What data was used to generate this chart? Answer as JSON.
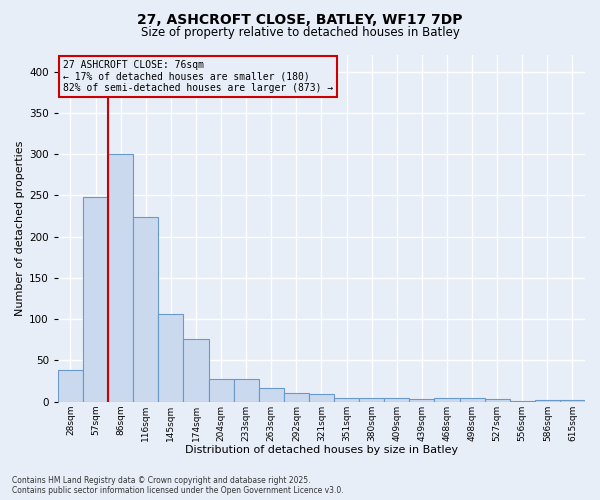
{
  "title_line1": "27, ASHCROFT CLOSE, BATLEY, WF17 7DP",
  "title_line2": "Size of property relative to detached houses in Batley",
  "xlabel": "Distribution of detached houses by size in Batley",
  "ylabel": "Number of detached properties",
  "footer_line1": "Contains HM Land Registry data © Crown copyright and database right 2025.",
  "footer_line2": "Contains public sector information licensed under the Open Government Licence v3.0.",
  "categories": [
    "28sqm",
    "57sqm",
    "86sqm",
    "116sqm",
    "145sqm",
    "174sqm",
    "204sqm",
    "233sqm",
    "263sqm",
    "292sqm",
    "321sqm",
    "351sqm",
    "380sqm",
    "409sqm",
    "439sqm",
    "468sqm",
    "498sqm",
    "527sqm",
    "556sqm",
    "586sqm",
    "615sqm"
  ],
  "values": [
    38,
    248,
    300,
    224,
    106,
    76,
    27,
    27,
    16,
    10,
    9,
    5,
    5,
    4,
    3,
    4,
    4,
    3,
    1,
    2,
    2
  ],
  "bar_color": "#cad9ee",
  "bar_edge_color": "#6899cc",
  "vline_color": "#cc0000",
  "vline_x": 1.5,
  "annotation_line1": "27 ASHCROFT CLOSE: 76sqm",
  "annotation_line2": "← 17% of detached houses are smaller (180)",
  "annotation_line3": "82% of semi-detached houses are larger (873) →",
  "annotation_box_edgecolor": "#cc0000",
  "ylim": [
    0,
    420
  ],
  "yticks": [
    0,
    50,
    100,
    150,
    200,
    250,
    300,
    350,
    400
  ],
  "background_color": "#e8eef8",
  "grid_color": "#d0d8ee",
  "plot_bg_color": "#e8eef8"
}
